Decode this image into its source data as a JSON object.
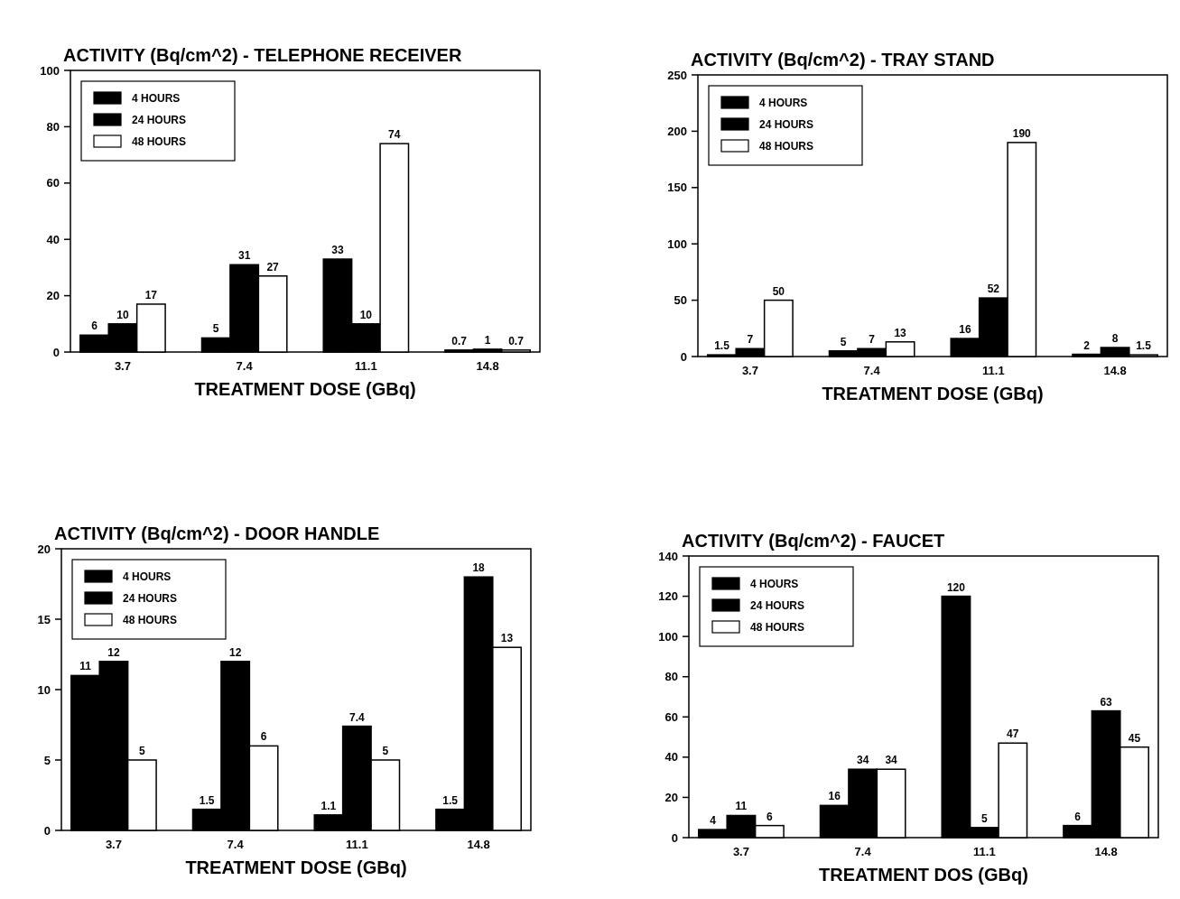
{
  "chart_data": [
    {
      "type": "bar",
      "title": "ACTIVITY (Bq/cm^2) - TELEPHONE RECEIVER",
      "xlabel": "TREATMENT DOSE (GBq)",
      "categories": [
        "3.7",
        "7.4",
        "11.1",
        "14.8"
      ],
      "ylim": [
        0,
        100
      ],
      "yticks": [
        0,
        20,
        40,
        60,
        80,
        100
      ],
      "legend": "top left",
      "data_labels": true,
      "series": [
        {
          "name": "4 HOURS",
          "color": "#000000",
          "values": [
            6,
            5,
            33,
            0.7
          ]
        },
        {
          "name": "24 HOURS",
          "color": "#000000",
          "values": [
            10,
            31,
            10,
            1
          ]
        },
        {
          "name": "48 HOURS",
          "color": "#ffffff",
          "values": [
            17,
            27,
            74,
            0.7
          ]
        }
      ]
    },
    {
      "type": "bar",
      "title": "ACTIVITY (Bq/cm^2) - TRAY STAND",
      "xlabel": "TREATMENT DOSE (GBq)",
      "categories": [
        "3.7",
        "7.4",
        "11.1",
        "14.8"
      ],
      "ylim": [
        0,
        250
      ],
      "yticks": [
        0,
        50,
        100,
        150,
        200,
        250
      ],
      "legend": "top left",
      "data_labels": true,
      "series": [
        {
          "name": "4 HOURS",
          "color": "#000000",
          "values": [
            1.5,
            5,
            16,
            2
          ]
        },
        {
          "name": "24 HOURS",
          "color": "#000000",
          "values": [
            7,
            7,
            52,
            8
          ]
        },
        {
          "name": "48 HOURS",
          "color": "#ffffff",
          "values": [
            50,
            13,
            190,
            1.5
          ]
        }
      ]
    },
    {
      "type": "bar",
      "title": "ACTIVITY (Bq/cm^2) - DOOR HANDLE",
      "xlabel": "TREATMENT DOSE (GBq)",
      "categories": [
        "3.7",
        "7.4",
        "11.1",
        "14.8"
      ],
      "ylim": [
        0,
        20
      ],
      "yticks": [
        0,
        5,
        10,
        15,
        20
      ],
      "legend": "top left",
      "data_labels": true,
      "series": [
        {
          "name": "4 HOURS",
          "color": "#000000",
          "values": [
            11,
            1.5,
            1.1,
            1.5
          ]
        },
        {
          "name": "24 HOURS",
          "color": "#000000",
          "values": [
            12,
            12,
            7.4,
            18
          ]
        },
        {
          "name": "48 HOURS",
          "color": "#ffffff",
          "values": [
            5,
            6,
            5,
            13
          ]
        }
      ]
    },
    {
      "type": "bar",
      "title": "ACTIVITY (Bq/cm^2) - FAUCET",
      "xlabel": "TREATMENT DOS (GBq)",
      "categories": [
        "3.7",
        "7.4",
        "11.1",
        "14.8"
      ],
      "ylim": [
        0,
        140
      ],
      "yticks": [
        0,
        20,
        40,
        60,
        80,
        100,
        120,
        140
      ],
      "legend": "top left",
      "data_labels": true,
      "series": [
        {
          "name": "4 HOURS",
          "color": "#000000",
          "values": [
            4,
            16,
            120,
            6
          ]
        },
        {
          "name": "24 HOURS",
          "color": "#000000",
          "values": [
            11,
            34,
            5,
            63
          ]
        },
        {
          "name": "48 HOURS",
          "color": "#ffffff",
          "values": [
            6,
            34,
            47,
            45
          ]
        }
      ]
    }
  ]
}
